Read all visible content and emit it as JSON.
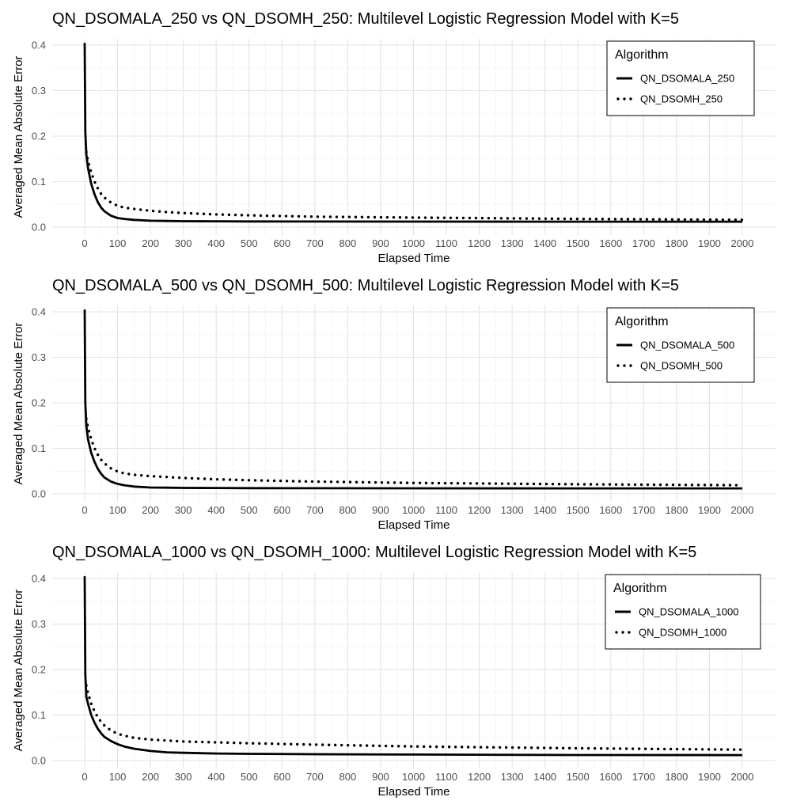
{
  "chart_data": [
    {
      "type": "line",
      "title": "QN_DSOMALA_250 vs QN_DSOMH_250: Multilevel Logistic Regression Model with K=5",
      "xlabel": "Elapsed Time",
      "ylabel": "Averaged Mean Absolute Error",
      "xlim": [
        0,
        2000
      ],
      "ylim": [
        0,
        0.4
      ],
      "x_ticks": [
        0,
        100,
        200,
        300,
        400,
        500,
        600,
        700,
        800,
        900,
        1000,
        1100,
        1200,
        1300,
        1400,
        1500,
        1600,
        1700,
        1800,
        1900,
        2000
      ],
      "y_ticks": [
        0.0,
        0.1,
        0.2,
        0.3,
        0.4
      ],
      "y_tick_labels": [
        "0.0",
        "0.1",
        "0.2",
        "0.3",
        "0.4"
      ],
      "grid": true,
      "legend": {
        "title": "Algorithm",
        "position": "top-right"
      },
      "series": [
        {
          "name": "QN_DSOMALA_250",
          "style": "solid",
          "color": "#000000",
          "x": [
            0,
            2,
            5,
            10,
            20,
            30,
            40,
            50,
            60,
            80,
            100,
            120,
            150,
            200,
            250,
            300,
            400,
            500,
            700,
            1000,
            1500,
            2000
          ],
          "y": [
            0.405,
            0.21,
            0.16,
            0.13,
            0.095,
            0.072,
            0.055,
            0.043,
            0.035,
            0.025,
            0.02,
            0.018,
            0.016,
            0.014,
            0.0135,
            0.013,
            0.0128,
            0.0126,
            0.0124,
            0.0122,
            0.012,
            0.012
          ]
        },
        {
          "name": "QN_DSOMH_250",
          "style": "dotted",
          "color": "#000000",
          "x": [
            5,
            10,
            20,
            30,
            40,
            50,
            60,
            80,
            100,
            120,
            150,
            200,
            250,
            300,
            400,
            500,
            700,
            1000,
            1500,
            2000
          ],
          "y": [
            0.165,
            0.145,
            0.12,
            0.1,
            0.085,
            0.073,
            0.065,
            0.054,
            0.047,
            0.043,
            0.04,
            0.036,
            0.033,
            0.031,
            0.028,
            0.026,
            0.023,
            0.021,
            0.018,
            0.016
          ]
        }
      ]
    },
    {
      "type": "line",
      "title": "QN_DSOMALA_500 vs QN_DSOMH_500: Multilevel Logistic Regression Model with K=5",
      "xlabel": "Elapsed Time",
      "ylabel": "Averaged Mean Absolute Error",
      "xlim": [
        0,
        2000
      ],
      "ylim": [
        0,
        0.4
      ],
      "x_ticks": [
        0,
        100,
        200,
        300,
        400,
        500,
        600,
        700,
        800,
        900,
        1000,
        1100,
        1200,
        1300,
        1400,
        1500,
        1600,
        1700,
        1800,
        1900,
        2000
      ],
      "y_ticks": [
        0.0,
        0.1,
        0.2,
        0.3,
        0.4
      ],
      "y_tick_labels": [
        "0.0",
        "0.1",
        "0.2",
        "0.3",
        "0.4"
      ],
      "grid": true,
      "legend": {
        "title": "Algorithm",
        "position": "top-right"
      },
      "series": [
        {
          "name": "QN_DSOMALA_500",
          "style": "solid",
          "color": "#000000",
          "x": [
            0,
            2,
            5,
            10,
            20,
            30,
            40,
            50,
            60,
            80,
            100,
            120,
            150,
            200,
            250,
            300,
            400,
            500,
            700,
            1000,
            1500,
            2000
          ],
          "y": [
            0.405,
            0.2,
            0.15,
            0.12,
            0.09,
            0.07,
            0.055,
            0.044,
            0.036,
            0.027,
            0.022,
            0.019,
            0.016,
            0.014,
            0.0135,
            0.013,
            0.0128,
            0.0126,
            0.0124,
            0.0122,
            0.012,
            0.012
          ]
        },
        {
          "name": "QN_DSOMH_500",
          "style": "dotted",
          "color": "#000000",
          "x": [
            5,
            10,
            20,
            30,
            40,
            50,
            60,
            80,
            100,
            120,
            150,
            200,
            250,
            300,
            400,
            500,
            700,
            1000,
            1500,
            2000
          ],
          "y": [
            0.165,
            0.145,
            0.12,
            0.1,
            0.086,
            0.075,
            0.067,
            0.056,
            0.049,
            0.045,
            0.042,
            0.039,
            0.037,
            0.035,
            0.032,
            0.03,
            0.027,
            0.024,
            0.021,
            0.019
          ]
        }
      ]
    },
    {
      "type": "line",
      "title": "QN_DSOMALA_1000 vs QN_DSOMH_1000: Multilevel Logistic Regression Model with K=5",
      "xlabel": "Elapsed Time",
      "ylabel": "Averaged Mean Absolute Error",
      "xlim": [
        0,
        2000
      ],
      "ylim": [
        0,
        0.4
      ],
      "x_ticks": [
        0,
        100,
        200,
        300,
        400,
        500,
        600,
        700,
        800,
        900,
        1000,
        1100,
        1200,
        1300,
        1400,
        1500,
        1600,
        1700,
        1800,
        1900,
        2000
      ],
      "y_ticks": [
        0.0,
        0.1,
        0.2,
        0.3,
        0.4
      ],
      "y_tick_labels": [
        "0.0",
        "0.1",
        "0.2",
        "0.3",
        "0.4"
      ],
      "grid": true,
      "legend": {
        "title": "Algorithm",
        "position": "top-right"
      },
      "series": [
        {
          "name": "QN_DSOMALA_1000",
          "style": "solid",
          "color": "#000000",
          "x": [
            0,
            2,
            5,
            10,
            20,
            30,
            40,
            50,
            60,
            80,
            100,
            120,
            150,
            200,
            250,
            300,
            400,
            500,
            700,
            1000,
            1500,
            2000
          ],
          "y": [
            0.405,
            0.19,
            0.14,
            0.125,
            0.1,
            0.083,
            0.07,
            0.06,
            0.052,
            0.043,
            0.036,
            0.031,
            0.026,
            0.021,
            0.018,
            0.017,
            0.0155,
            0.0148,
            0.014,
            0.0132,
            0.0122,
            0.012
          ]
        },
        {
          "name": "QN_DSOMH_1000",
          "style": "dotted",
          "color": "#000000",
          "x": [
            5,
            10,
            20,
            30,
            40,
            50,
            60,
            80,
            100,
            120,
            150,
            200,
            250,
            300,
            400,
            500,
            700,
            1000,
            1500,
            2000
          ],
          "y": [
            0.165,
            0.148,
            0.125,
            0.108,
            0.095,
            0.085,
            0.077,
            0.066,
            0.059,
            0.055,
            0.05,
            0.046,
            0.044,
            0.042,
            0.04,
            0.038,
            0.035,
            0.031,
            0.027,
            0.024
          ]
        }
      ]
    }
  ]
}
